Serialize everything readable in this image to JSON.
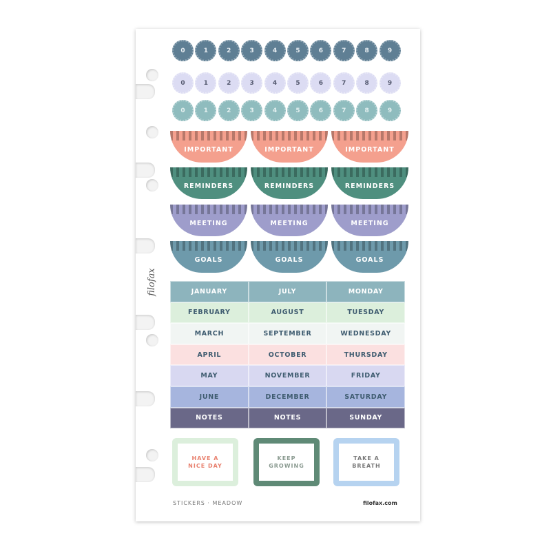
{
  "number_rows": [
    {
      "digits": [
        "0",
        "1",
        "2",
        "3",
        "4",
        "5",
        "6",
        "7",
        "8",
        "9"
      ],
      "bg": "#5f7f94",
      "fg": "#e8eef2"
    },
    {
      "digits": [
        "0",
        "1",
        "2",
        "3",
        "4",
        "5",
        "6",
        "7",
        "8",
        "9"
      ],
      "bg": "#dcdcf3",
      "fg": "#555a70"
    },
    {
      "digits": [
        "0",
        "1",
        "2",
        "3",
        "4",
        "5",
        "6",
        "7",
        "8",
        "9"
      ],
      "bg": "#8fbcbe",
      "fg": "#e3f0f0"
    }
  ],
  "half_rows": [
    {
      "label": "IMPORTANT",
      "bg": "#f4a08e"
    },
    {
      "label": "REMINDERS",
      "bg": "#4f8f7f"
    },
    {
      "label": "MEETING",
      "bg": "#9e9dcb"
    },
    {
      "label": "GOALS",
      "bg": "#6e9aab"
    }
  ],
  "table": [
    {
      "cells": [
        "JANUARY",
        "JULY",
        "MONDAY"
      ],
      "bg": "#8db4bd",
      "fg": "#ffffff"
    },
    {
      "cells": [
        "FEBRUARY",
        "AUGUST",
        "TUESDAY"
      ],
      "bg": "#dcefdc",
      "fg": "#3f5c70"
    },
    {
      "cells": [
        "MARCH",
        "SEPTEMBER",
        "WEDNESDAY"
      ],
      "bg": "#f1f5f3",
      "fg": "#3f5c70"
    },
    {
      "cells": [
        "APRIL",
        "OCTOBER",
        "THURSDAY"
      ],
      "bg": "#fbe0e0",
      "fg": "#3f5c70"
    },
    {
      "cells": [
        "MAY",
        "NOVEMBER",
        "FRIDAY"
      ],
      "bg": "#d8d8f1",
      "fg": "#3f5c70"
    },
    {
      "cells": [
        "JUNE",
        "DECEMBER",
        "SATURDAY"
      ],
      "bg": "#a6b5de",
      "fg": "#3f5c70"
    },
    {
      "cells": [
        "NOTES",
        "NOTES",
        "SUNDAY"
      ],
      "bg": "#6a6888",
      "fg": "#ffffff"
    }
  ],
  "labels": [
    {
      "text": "HAVE A\nNICE DAY",
      "border": "#dcefdc",
      "fg": "#e8806e"
    },
    {
      "text": "KEEP\nGROWING",
      "border": "#5f8a76",
      "fg": "#8a9a90"
    },
    {
      "text": "TAKE A\nBREATH",
      "border": "#b6d3f0",
      "fg": "#777"
    }
  ],
  "footer": {
    "left": "STICKERS · MEADOW",
    "right": "filofax.com"
  },
  "logo": "filofax"
}
